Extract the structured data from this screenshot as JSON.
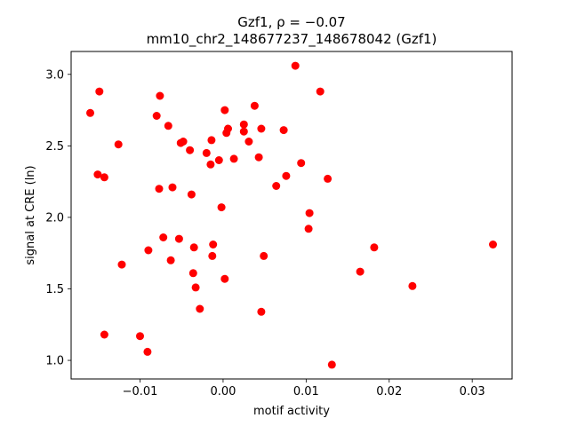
{
  "chart_data": {
    "type": "scatter",
    "title_line1": "Gzf1, ρ = −0.07",
    "title_line2": "mm10_chr2_148677237_148678042 (Gzf1)",
    "xlabel": "motif activity",
    "ylabel": "signal at CRE (ln)",
    "xlim": [
      -0.0183,
      0.0348
    ],
    "ylim": [
      0.87,
      3.16
    ],
    "xticks": [
      -0.01,
      0.0,
      0.01,
      0.02,
      0.03
    ],
    "xtick_labels": [
      "−0.01",
      "0.00",
      "0.01",
      "0.02",
      "0.03"
    ],
    "yticks": [
      1.0,
      1.5,
      2.0,
      2.5,
      3.0
    ],
    "ytick_labels": [
      "1.0",
      "1.5",
      "2.0",
      "2.5",
      "3.0"
    ],
    "grid": false,
    "marker_color": "#ff0000",
    "points": [
      {
        "x": -0.016,
        "y": 2.73
      },
      {
        "x": -0.0149,
        "y": 2.88
      },
      {
        "x": -0.0151,
        "y": 2.3
      },
      {
        "x": -0.0143,
        "y": 2.28
      },
      {
        "x": -0.0143,
        "y": 1.18
      },
      {
        "x": -0.0126,
        "y": 2.51
      },
      {
        "x": -0.0122,
        "y": 1.67
      },
      {
        "x": -0.01,
        "y": 1.17
      },
      {
        "x": -0.0091,
        "y": 1.06
      },
      {
        "x": -0.009,
        "y": 1.77
      },
      {
        "x": -0.008,
        "y": 2.71
      },
      {
        "x": -0.0076,
        "y": 2.85
      },
      {
        "x": -0.0077,
        "y": 2.2
      },
      {
        "x": -0.0072,
        "y": 1.86
      },
      {
        "x": -0.0066,
        "y": 2.64
      },
      {
        "x": -0.0061,
        "y": 2.21
      },
      {
        "x": -0.0063,
        "y": 1.7
      },
      {
        "x": -0.0053,
        "y": 1.85
      },
      {
        "x": -0.0051,
        "y": 2.52
      },
      {
        "x": -0.0048,
        "y": 2.53
      },
      {
        "x": -0.004,
        "y": 2.47
      },
      {
        "x": -0.0038,
        "y": 2.16
      },
      {
        "x": -0.0035,
        "y": 1.79
      },
      {
        "x": -0.0036,
        "y": 1.61
      },
      {
        "x": -0.0033,
        "y": 1.51
      },
      {
        "x": -0.0028,
        "y": 1.36
      },
      {
        "x": -0.002,
        "y": 2.45
      },
      {
        "x": -0.0015,
        "y": 2.37
      },
      {
        "x": -0.0014,
        "y": 2.54
      },
      {
        "x": -0.0012,
        "y": 1.81
      },
      {
        "x": -0.0013,
        "y": 1.73
      },
      {
        "x": -0.0005,
        "y": 2.4
      },
      {
        "x": -0.0002,
        "y": 2.07
      },
      {
        "x": 0.0002,
        "y": 2.75
      },
      {
        "x": 0.0004,
        "y": 2.59
      },
      {
        "x": 0.0006,
        "y": 2.62
      },
      {
        "x": 0.0002,
        "y": 1.57
      },
      {
        "x": 0.0013,
        "y": 2.41
      },
      {
        "x": 0.0025,
        "y": 2.65
      },
      {
        "x": 0.0025,
        "y": 2.6
      },
      {
        "x": 0.0031,
        "y": 2.53
      },
      {
        "x": 0.0038,
        "y": 2.78
      },
      {
        "x": 0.0043,
        "y": 2.42
      },
      {
        "x": 0.0046,
        "y": 2.62
      },
      {
        "x": 0.0049,
        "y": 1.73
      },
      {
        "x": 0.0046,
        "y": 1.34
      },
      {
        "x": 0.0064,
        "y": 2.22
      },
      {
        "x": 0.0073,
        "y": 2.61
      },
      {
        "x": 0.0076,
        "y": 2.29
      },
      {
        "x": 0.0087,
        "y": 3.06
      },
      {
        "x": 0.0094,
        "y": 2.38
      },
      {
        "x": 0.0104,
        "y": 2.03
      },
      {
        "x": 0.0103,
        "y": 1.92
      },
      {
        "x": 0.0117,
        "y": 2.88
      },
      {
        "x": 0.0126,
        "y": 2.27
      },
      {
        "x": 0.0131,
        "y": 0.97
      },
      {
        "x": 0.0165,
        "y": 1.62
      },
      {
        "x": 0.0182,
        "y": 1.79
      },
      {
        "x": 0.0228,
        "y": 1.52
      },
      {
        "x": 0.0325,
        "y": 1.81
      }
    ]
  }
}
